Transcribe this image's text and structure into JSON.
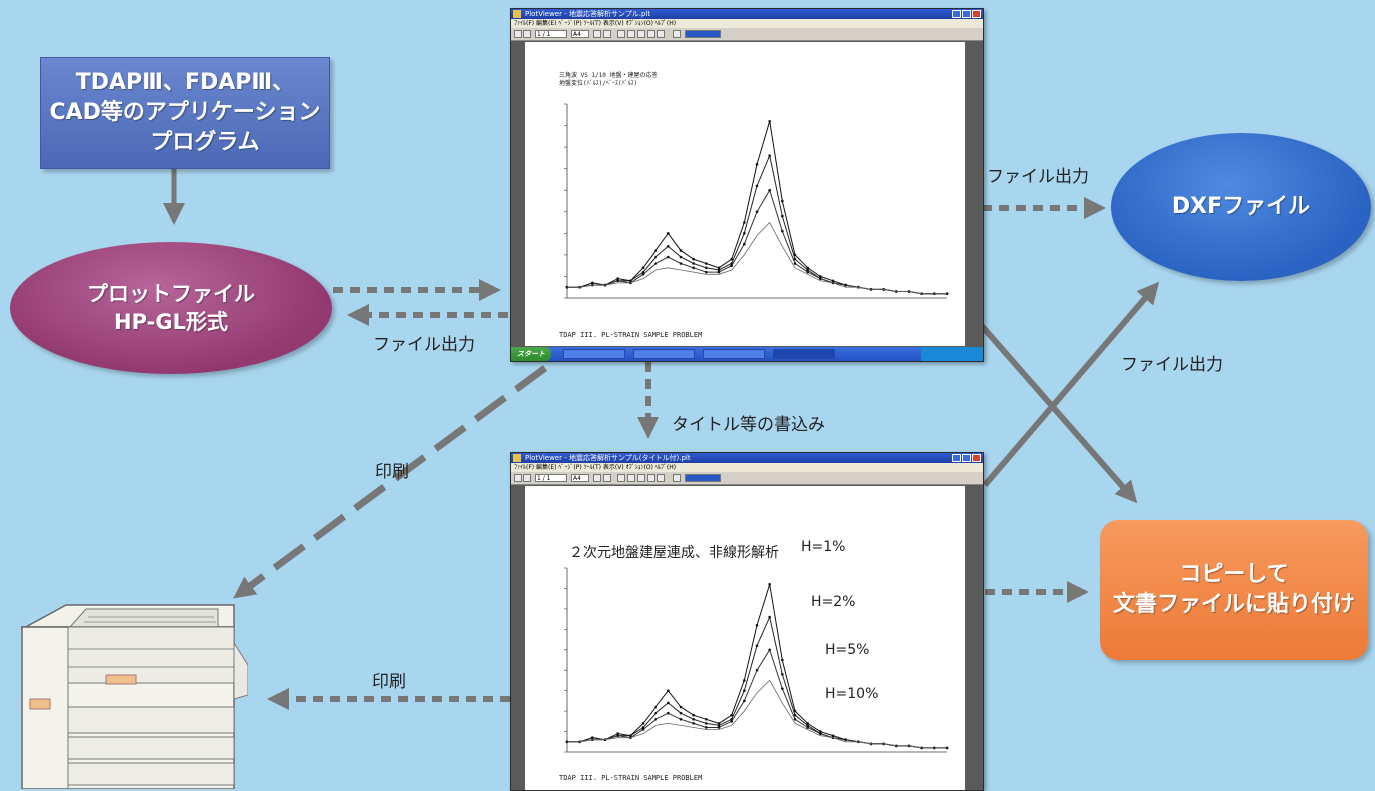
{
  "nodes": {
    "app_programs": {
      "lines": [
        "TDAPⅢ、FDAPⅢ、",
        "CAD等のアプリケーション",
        "プログラム"
      ],
      "color": "#5a77c4"
    },
    "plot_file": {
      "lines": [
        "プロットファイル",
        "HP-GL形式"
      ],
      "color": "#a14e84"
    },
    "dxf_file": {
      "label": "DXFファイル",
      "color": "#3776d2"
    },
    "copy_paste": {
      "lines": [
        "コピーして",
        "文書ファイルに貼り付け"
      ],
      "color": "#f08646"
    }
  },
  "edge_labels": {
    "file_output_plot": "ファイル出力",
    "file_output_dxf_top": "ファイル出力",
    "file_output_dxf_cross": "ファイル出力",
    "title_write": "タイトル等の書込み",
    "print_upper": "印刷",
    "print_lower": "印刷"
  },
  "viewer_top": {
    "title": "PlotViewer - 地震応答解析サンプル.plt",
    "menu": "ﾌｧｲﾙ(F) 編集(E) ﾍﾟｰｼﾞ(P) ﾂｰﾙ(T) 表示(V) ｵﾌﾟｼｮﾝ(O) ﾍﾙﾌﾟ(H)",
    "page_indicator": "1 / 1",
    "paper_size": "A4",
    "footer": "TDAP III. PL-STRAIN SAMPLE PROBLEM",
    "header_lines": [
      "三角波 VS 1/10 地盤・建屋の応答",
      "地盤変位(ﾊﾟﾙｽ)/ﾍﾞｰｽ(ﾊﾟﾙｽ)"
    ],
    "start_label": "スタート"
  },
  "viewer_bottom": {
    "title": "PlotViewer - 地震応答解析サンプル(タイトル付).plt",
    "menu": "ﾌｧｲﾙ(F) 編集(E) ﾍﾟｰｼﾞ(P) ﾂｰﾙ(T) 表示(V) ｵﾌﾟｼｮﾝ(O) ﾍﾙﾌﾟ(H)",
    "page_indicator": "1 / 1",
    "paper_size": "A4",
    "footer": "TDAP III. PL-STRAIN SAMPLE PROBLEM",
    "annotation": "２次元地盤建屋連成、非線形解析",
    "curve_labels": [
      "H=1%",
      "H=2%",
      "H=5%",
      "H=10%"
    ]
  },
  "chart_data": {
    "type": "line",
    "x": [
      0,
      1,
      2,
      3,
      4,
      5,
      6,
      7,
      8,
      9,
      10,
      11,
      12,
      13,
      14,
      15,
      16,
      17,
      18,
      19,
      20,
      21,
      22,
      23,
      24,
      25,
      26,
      27,
      28,
      29,
      30
    ],
    "series": [
      {
        "name": "H=1%",
        "values": [
          0.05,
          0.05,
          0.07,
          0.06,
          0.09,
          0.08,
          0.14,
          0.22,
          0.3,
          0.22,
          0.18,
          0.16,
          0.14,
          0.18,
          0.35,
          0.62,
          0.82,
          0.45,
          0.2,
          0.14,
          0.1,
          0.08,
          0.06,
          0.05,
          0.04,
          0.04,
          0.03,
          0.03,
          0.02,
          0.02,
          0.02
        ]
      },
      {
        "name": "H=2%",
        "values": [
          0.05,
          0.05,
          0.07,
          0.06,
          0.08,
          0.08,
          0.12,
          0.19,
          0.24,
          0.19,
          0.16,
          0.14,
          0.13,
          0.16,
          0.3,
          0.52,
          0.66,
          0.38,
          0.18,
          0.13,
          0.09,
          0.07,
          0.06,
          0.05,
          0.04,
          0.04,
          0.03,
          0.03,
          0.02,
          0.02,
          0.02
        ]
      },
      {
        "name": "H=5%",
        "values": [
          0.05,
          0.05,
          0.06,
          0.06,
          0.08,
          0.07,
          0.11,
          0.16,
          0.19,
          0.16,
          0.14,
          0.12,
          0.12,
          0.15,
          0.25,
          0.4,
          0.5,
          0.31,
          0.16,
          0.12,
          0.09,
          0.07,
          0.06,
          0.05,
          0.04,
          0.04,
          0.03,
          0.03,
          0.02,
          0.02,
          0.02
        ]
      },
      {
        "name": "H=10%",
        "values": [
          0.05,
          0.05,
          0.06,
          0.06,
          0.07,
          0.07,
          0.09,
          0.13,
          0.14,
          0.13,
          0.12,
          0.11,
          0.11,
          0.13,
          0.2,
          0.29,
          0.35,
          0.24,
          0.14,
          0.11,
          0.08,
          0.07,
          0.05,
          0.05,
          0.04,
          0.04,
          0.03,
          0.03,
          0.02,
          0.02,
          0.02
        ]
      }
    ],
    "ylim": [
      0,
      0.9
    ]
  }
}
